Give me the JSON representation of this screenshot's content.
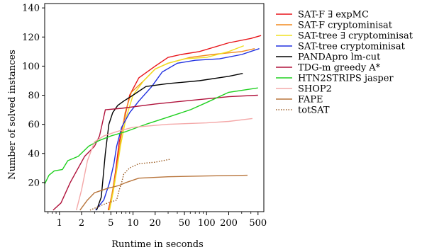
{
  "chart_data": {
    "type": "line",
    "xlabel": "Runtime in seconds",
    "ylabel": "Number of solved instances",
    "xscale": "log",
    "xlim": [
      0.63,
      600
    ],
    "ylim": [
      0,
      143
    ],
    "grid": false,
    "legend_position": "right-outside",
    "x_ticks": [
      1,
      2,
      5,
      10,
      20,
      50,
      100,
      200,
      500
    ],
    "x_tick_labels": [
      "1",
      "2",
      "5",
      "10",
      "20",
      "50",
      "100",
      "200",
      "500"
    ],
    "y_ticks": [
      20,
      40,
      60,
      80,
      100,
      120,
      140
    ],
    "y_tick_labels": [
      "20",
      "40",
      "60",
      "80",
      "100",
      "120",
      "140"
    ],
    "series": [
      {
        "name": "SAT-F ∃ expMC",
        "color": "#e8141a",
        "dash": "solid",
        "points": [
          [
            4.6,
            1
          ],
          [
            5.2,
            12
          ],
          [
            5.8,
            28
          ],
          [
            6.5,
            48
          ],
          [
            7.5,
            62
          ],
          [
            9,
            80
          ],
          [
            12,
            92
          ],
          [
            20,
            100
          ],
          [
            30,
            106
          ],
          [
            45,
            108
          ],
          [
            80,
            110
          ],
          [
            200,
            116
          ],
          [
            400,
            119
          ],
          [
            550,
            121
          ]
        ]
      },
      {
        "name": "SAT-F cryptominisat",
        "color": "#f28a1e",
        "dash": "solid",
        "points": [
          [
            4.7,
            1
          ],
          [
            5.3,
            15
          ],
          [
            6,
            30
          ],
          [
            6.8,
            50
          ],
          [
            7.8,
            68
          ],
          [
            9.5,
            82
          ],
          [
            14,
            90
          ],
          [
            20,
            98
          ],
          [
            30,
            102
          ],
          [
            60,
            106
          ],
          [
            120,
            108
          ],
          [
            300,
            110
          ],
          [
            450,
            112
          ]
        ]
      },
      {
        "name": "SAT-tree ∃ cryptominisat",
        "color": "#f0e020",
        "dash": "solid",
        "points": [
          [
            4.8,
            1
          ],
          [
            5.4,
            14
          ],
          [
            6,
            28
          ],
          [
            6.8,
            46
          ],
          [
            8,
            64
          ],
          [
            10,
            80
          ],
          [
            14,
            90
          ],
          [
            20,
            98
          ],
          [
            30,
            102
          ],
          [
            50,
            105
          ],
          [
            100,
            106
          ],
          [
            200,
            110
          ],
          [
            320,
            114
          ]
        ]
      },
      {
        "name": "SAT-tree cryptominisat",
        "color": "#2030e0",
        "dash": "solid",
        "points": [
          [
            3.1,
            1
          ],
          [
            4,
            8
          ],
          [
            4.8,
            20
          ],
          [
            5.5,
            33
          ],
          [
            6,
            45
          ],
          [
            7,
            58
          ],
          [
            9,
            68
          ],
          [
            12,
            76
          ],
          [
            18,
            86
          ],
          [
            25,
            96
          ],
          [
            40,
            102
          ],
          [
            70,
            104
          ],
          [
            150,
            105
          ],
          [
            300,
            108
          ],
          [
            520,
            112
          ]
        ]
      },
      {
        "name": "PANDApro lm-cut",
        "color": "#000000",
        "dash": "solid",
        "points": [
          [
            3.2,
            1
          ],
          [
            3.7,
            10
          ],
          [
            4.2,
            40
          ],
          [
            4.7,
            60
          ],
          [
            5.3,
            68
          ],
          [
            6.2,
            73
          ],
          [
            7.5,
            76
          ],
          [
            10,
            80
          ],
          [
            15,
            86
          ],
          [
            30,
            88
          ],
          [
            80,
            90
          ],
          [
            200,
            93
          ],
          [
            310,
            95
          ]
        ]
      },
      {
        "name": "TDG-m greedy A*",
        "color": "#b0133c",
        "dash": "solid",
        "points": [
          [
            0.82,
            1
          ],
          [
            1.05,
            6
          ],
          [
            1.4,
            20
          ],
          [
            2.2,
            38
          ],
          [
            3,
            45
          ],
          [
            3.5,
            52
          ],
          [
            4.2,
            70
          ],
          [
            7,
            71
          ],
          [
            20,
            74
          ],
          [
            50,
            76
          ],
          [
            200,
            79
          ],
          [
            500,
            80
          ]
        ]
      },
      {
        "name": "HTN2STRIPS jasper",
        "color": "#20d020",
        "dash": "solid",
        "points": [
          [
            0.63,
            19
          ],
          [
            0.72,
            25
          ],
          [
            0.85,
            28
          ],
          [
            1.1,
            29
          ],
          [
            1.3,
            35
          ],
          [
            1.8,
            38
          ],
          [
            2.5,
            45
          ],
          [
            3.5,
            49
          ],
          [
            5,
            52
          ],
          [
            8,
            55
          ],
          [
            15,
            60
          ],
          [
            30,
            65
          ],
          [
            60,
            70
          ],
          [
            100,
            75
          ],
          [
            200,
            82
          ],
          [
            500,
            85
          ]
        ]
      },
      {
        "name": "SHOP2",
        "color": "#f4a8a8",
        "dash": "solid",
        "points": [
          [
            1.7,
            1
          ],
          [
            2,
            15
          ],
          [
            2.4,
            35
          ],
          [
            3,
            48
          ],
          [
            4,
            52
          ],
          [
            6,
            55
          ],
          [
            10,
            58
          ],
          [
            30,
            60
          ],
          [
            100,
            61
          ],
          [
            200,
            62
          ],
          [
            420,
            64
          ]
        ]
      },
      {
        "name": "FAPE",
        "color": "#b8753c",
        "dash": "solid",
        "points": [
          [
            1.9,
            1
          ],
          [
            2.4,
            8
          ],
          [
            3,
            13
          ],
          [
            4.5,
            16
          ],
          [
            6.5,
            18
          ],
          [
            8,
            20
          ],
          [
            12,
            23
          ],
          [
            30,
            24
          ],
          [
            100,
            24.5
          ],
          [
            360,
            25
          ]
        ]
      },
      {
        "name": "totSAT",
        "color": "#9a5a20",
        "dash": "dotted",
        "points": [
          [
            2.6,
            1
          ],
          [
            4,
            5
          ],
          [
            6,
            8
          ],
          [
            6.5,
            15
          ],
          [
            7,
            20
          ],
          [
            7.5,
            26
          ],
          [
            9,
            30
          ],
          [
            12,
            33
          ],
          [
            20,
            34
          ],
          [
            32,
            36
          ]
        ]
      }
    ]
  }
}
